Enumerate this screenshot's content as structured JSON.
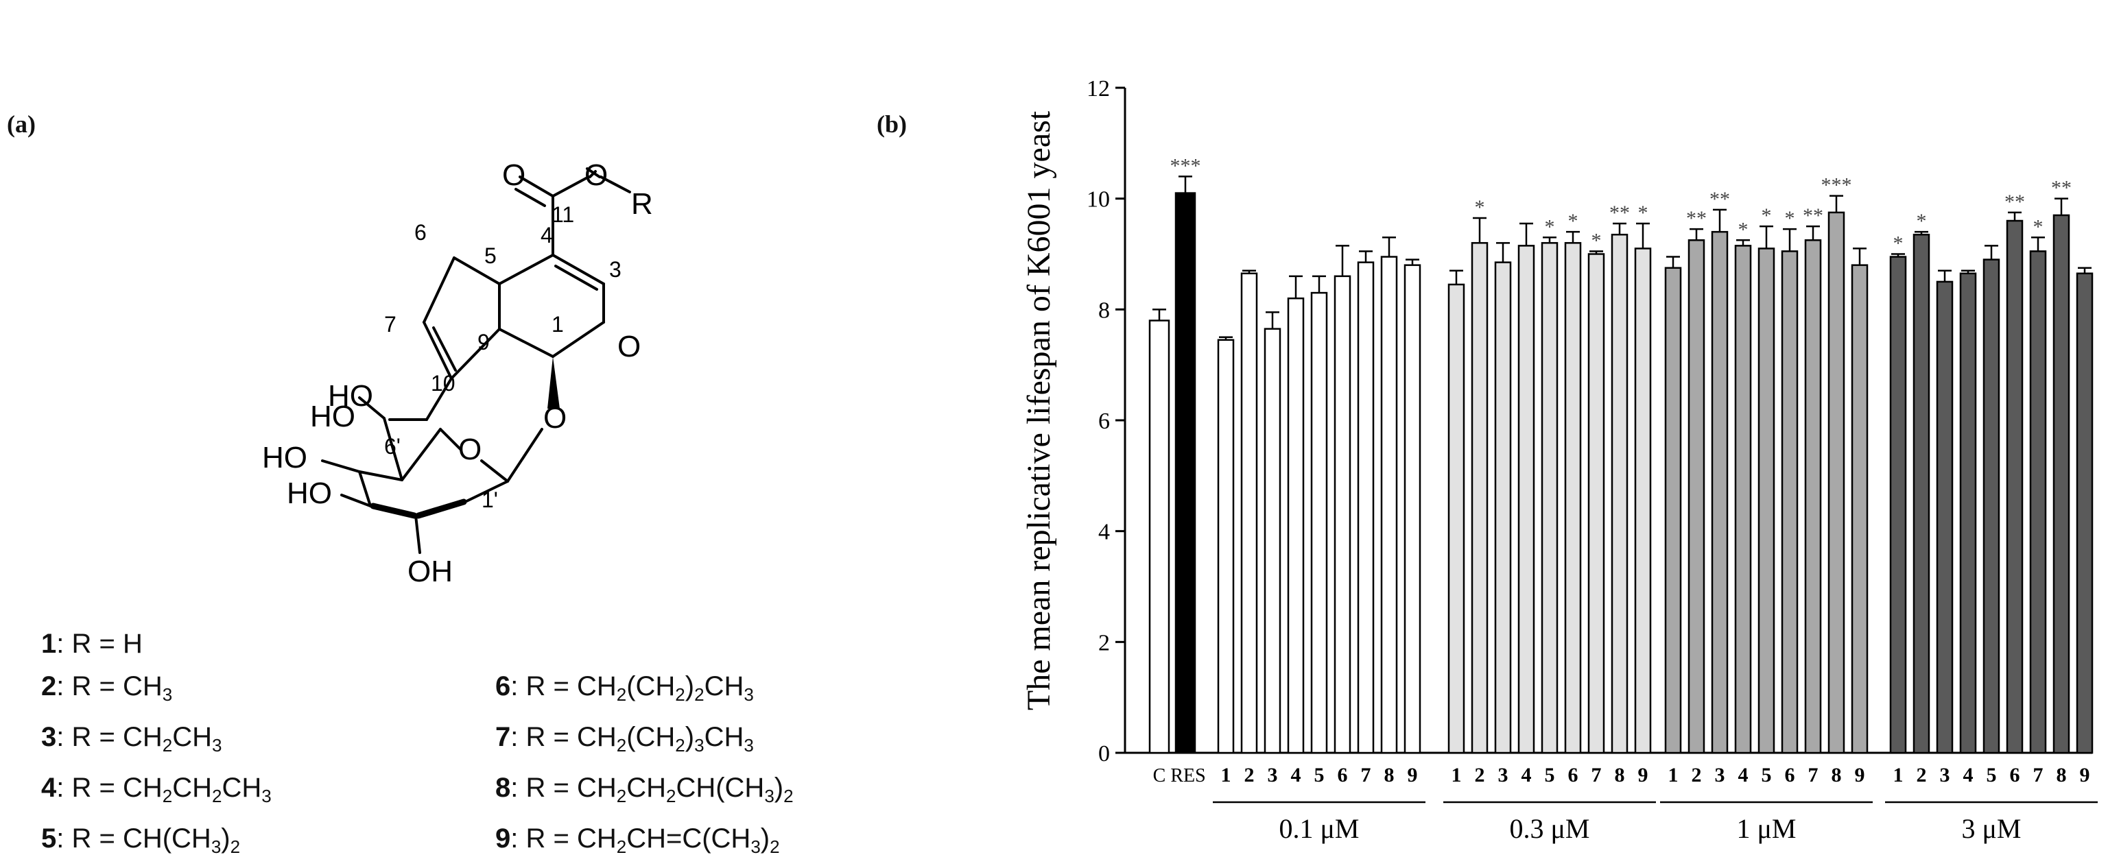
{
  "panels": {
    "a": "(a)",
    "b": "(b)"
  },
  "structure": {
    "atom_labels": [
      "O",
      "O",
      "R",
      "11",
      "4",
      "3",
      "6",
      "5",
      "7",
      "HO",
      "10",
      "9",
      "1",
      "O",
      "O",
      "HO",
      "6'",
      "O",
      "HO",
      "HO",
      "OH",
      "1'"
    ]
  },
  "compounds": [
    {
      "num": "1",
      "text": ": R = H"
    },
    {
      "num": "2",
      "text": ": R = CH",
      "sub": [
        {
          "t": "3"
        }
      ]
    },
    {
      "num": "3",
      "text": ": R = CH",
      "parts": [
        "2",
        "CH",
        "3"
      ]
    },
    {
      "num": "4",
      "text": ": R = CH",
      "parts": [
        "2",
        "CH",
        "2",
        "CH",
        "3"
      ]
    },
    {
      "num": "5",
      "text": ": R = CH(CH",
      "parts": [
        "3",
        ")",
        "2"
      ]
    },
    {
      "num": "6",
      "text": ": R = CH",
      "parts": [
        "2",
        "(CH",
        "2",
        ")",
        "2",
        "CH",
        "3"
      ]
    },
    {
      "num": "7",
      "text": ": R = CH",
      "parts": [
        "2",
        "(CH",
        "2",
        ")",
        "3",
        "CH",
        "3"
      ]
    },
    {
      "num": "8",
      "text": ": R = CH",
      "parts": [
        "2",
        "CH",
        "2",
        "CH(CH",
        "3",
        ")",
        "2"
      ]
    },
    {
      "num": "9",
      "text": ": R = CH",
      "parts": [
        "2",
        "CH=C(CH",
        "3",
        ")",
        "2"
      ]
    }
  ],
  "chart_data": {
    "type": "bar",
    "ylabel": "The  mean  replicative lifespan of K6001 yeast",
    "ylim": [
      0,
      12
    ],
    "yticks": [
      0,
      2,
      4,
      6,
      8,
      10,
      12
    ],
    "controls": [
      {
        "label": "C",
        "value": 7.8,
        "err": 0.2,
        "sig": "",
        "color": "#ffffff"
      },
      {
        "label": "RES",
        "value": 10.1,
        "err": 0.3,
        "sig": "***",
        "color": "#000000"
      }
    ],
    "groups": [
      {
        "label": "0.1 μM",
        "color": "#ffffff",
        "tick_labels": [
          "1",
          "2",
          "3",
          "4",
          "5",
          "6",
          "7",
          "8",
          "9"
        ],
        "values": [
          7.45,
          8.65,
          7.65,
          8.2,
          8.3,
          8.6,
          8.85,
          8.95,
          8.8
        ],
        "errors": [
          0.05,
          0.05,
          0.3,
          0.4,
          0.3,
          0.55,
          0.2,
          0.35,
          0.1
        ],
        "sig": [
          "",
          "",
          "",
          "",
          "",
          "",
          "",
          "",
          ""
        ]
      },
      {
        "label": "0.3 μM",
        "color": "#e2e2e2",
        "tick_labels": [
          "1",
          "2",
          "3",
          "4",
          "5",
          "6",
          "7",
          "8",
          "9"
        ],
        "values": [
          8.45,
          9.2,
          8.85,
          9.15,
          9.2,
          9.2,
          9.0,
          9.35,
          9.1
        ],
        "errors": [
          0.25,
          0.45,
          0.35,
          0.4,
          0.1,
          0.2,
          0.05,
          0.2,
          0.45
        ],
        "sig": [
          "",
          "*",
          "",
          "",
          "*",
          "*",
          "*",
          "**",
          "*"
        ]
      },
      {
        "label": "1 μM",
        "color": "#a8a8a8",
        "tick_labels": [
          "1",
          "2",
          "3",
          "4",
          "5",
          "6",
          "7",
          "8",
          "9"
        ],
        "values": [
          8.75,
          9.25,
          9.4,
          9.15,
          9.1,
          9.05,
          9.25,
          9.75,
          8.8
        ],
        "errors": [
          0.2,
          0.2,
          0.4,
          0.1,
          0.4,
          0.4,
          0.25,
          0.3,
          0.3
        ],
        "sig": [
          "",
          "**",
          "**",
          "*",
          "*",
          "*",
          "**",
          "***",
          ""
        ]
      },
      {
        "label": "3 μM",
        "color": "#5a5a5a",
        "tick_labels": [
          "1",
          "2",
          "3",
          "4",
          "5",
          "6",
          "7",
          "8",
          "9"
        ],
        "values": [
          8.95,
          9.35,
          8.5,
          8.65,
          8.9,
          9.6,
          9.05,
          9.7,
          8.65
        ],
        "errors": [
          0.05,
          0.05,
          0.2,
          0.05,
          0.25,
          0.15,
          0.25,
          0.3,
          0.1
        ],
        "sig": [
          "*",
          "*",
          "",
          "",
          "",
          "**",
          "*",
          "**",
          ""
        ]
      }
    ]
  }
}
